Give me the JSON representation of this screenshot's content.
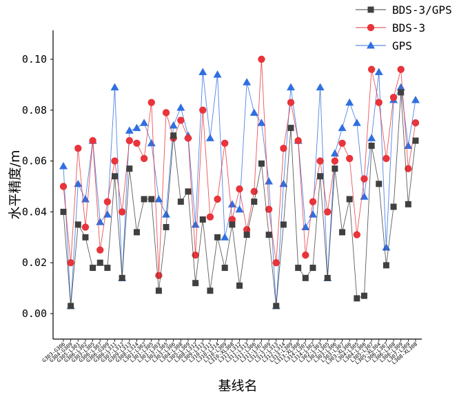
{
  "chart_data": {
    "type": "line",
    "xlabel": "基线名",
    "ylabel": "水平精度/m",
    "ylim": [
      -0.01,
      0.11
    ],
    "yticks": [
      0.0,
      0.02,
      0.04,
      0.06,
      0.08,
      0.1
    ],
    "ytick_labels": [
      "0.00",
      "0.02",
      "0.04",
      "0.06",
      "0.08",
      "0.10"
    ],
    "grid": false,
    "legend_position": "top-right",
    "categories": [
      "G303-G306",
      "G304-G309",
      "G305-L301",
      "G306-L302",
      "G303-L305",
      "G306-L307",
      "G306-G309",
      "G306-L311",
      "G307-L312",
      "G309-L313",
      "G308-L314",
      "L301-L302",
      "L301-L305",
      "L301-L303",
      "L302-L305",
      "L303-L306",
      "L304-L308",
      "L305-L309",
      "L308-L312",
      "L309-L313",
      "L310-L311",
      "L310-L314",
      "L310-L309",
      "L310-XL308",
      "L311-L312",
      "L311-L313",
      "L311-L306",
      "L311-L307",
      "L312-L309",
      "L312-L313",
      "L312-L314",
      "L313-L309",
      "L313-XL308",
      "L314-L307",
      "L314-L302",
      "L302-L303",
      "L302-L305",
      "L303-L306",
      "L303-L307",
      "L303-XL306",
      "L304-L305",
      "L304-L306",
      "L305-L307",
      "L305-XL304",
      "L306-L307",
      "L306-L308",
      "L306-L309",
      "L307-L309",
      "L308-XL308"
    ],
    "series": [
      {
        "name": "BDS-3/GPS",
        "color": "#404040",
        "marker": "square",
        "values": [
          0.04,
          0.003,
          0.035,
          0.03,
          0.018,
          0.02,
          0.018,
          0.054,
          0.014,
          0.057,
          0.032,
          0.045,
          0.045,
          0.009,
          0.034,
          0.07,
          0.044,
          0.048,
          0.012,
          0.037,
          0.009,
          0.03,
          0.018,
          0.035,
          0.011,
          0.031,
          0.044,
          0.059,
          0.031,
          0.003,
          0.035,
          0.073,
          0.018,
          0.014,
          0.018,
          0.054,
          0.014,
          0.057,
          0.032,
          0.045,
          0.006,
          0.007,
          0.066,
          0.051,
          0.019,
          0.042,
          0.087,
          0.043,
          0.068
        ]
      },
      {
        "name": "BDS-3",
        "color": "#e8343a",
        "marker": "circle",
        "values": [
          0.05,
          0.02,
          0.065,
          0.034,
          0.068,
          0.025,
          0.044,
          0.06,
          0.04,
          0.068,
          0.067,
          0.061,
          0.083,
          0.015,
          0.079,
          0.069,
          0.076,
          0.069,
          0.023,
          0.08,
          0.038,
          0.045,
          0.067,
          0.037,
          0.049,
          0.033,
          0.048,
          0.1,
          0.041,
          0.02,
          0.065,
          0.083,
          0.068,
          0.023,
          0.044,
          0.06,
          0.04,
          0.06,
          0.067,
          0.061,
          0.031,
          0.053,
          0.096,
          0.083,
          0.061,
          0.085,
          0.096,
          0.057,
          0.075
        ]
      },
      {
        "name": "GPS",
        "color": "#2f6fe0",
        "marker": "triangle",
        "values": [
          0.058,
          0.003,
          0.051,
          0.045,
          0.068,
          0.036,
          0.039,
          0.089,
          0.014,
          0.072,
          0.073,
          0.075,
          0.067,
          0.045,
          0.039,
          0.074,
          0.081,
          0.07,
          0.035,
          0.095,
          0.069,
          0.094,
          0.03,
          0.043,
          0.041,
          0.091,
          0.079,
          0.075,
          0.052,
          0.003,
          0.051,
          0.089,
          0.068,
          0.034,
          0.039,
          0.089,
          0.014,
          0.063,
          0.073,
          0.083,
          0.075,
          0.046,
          0.069,
          0.095,
          0.026,
          0.084,
          0.089,
          0.066,
          0.084
        ]
      }
    ]
  }
}
